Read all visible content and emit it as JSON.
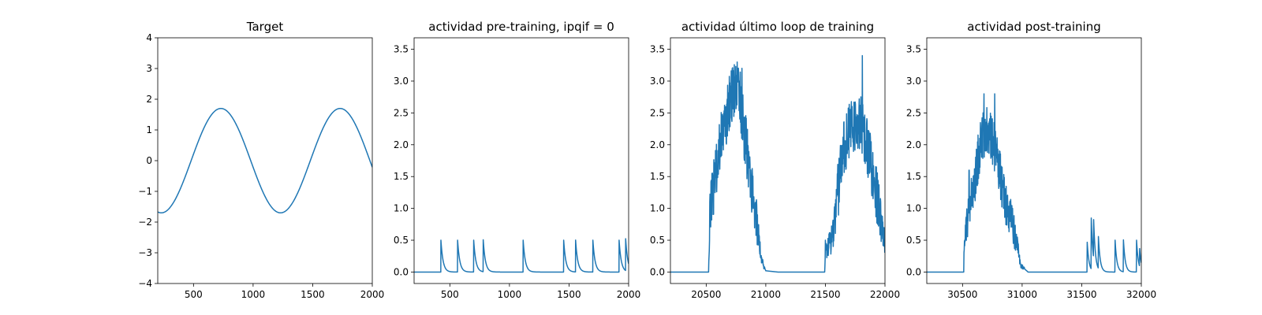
{
  "figure": {
    "line_color": "#1f77b4"
  },
  "chart_data": [
    {
      "type": "line",
      "title": "Target",
      "xlabel": "",
      "ylabel": "",
      "xlim": [
        200,
        2000
      ],
      "ylim": [
        -4,
        4
      ],
      "xticks": [
        500,
        1000,
        1500,
        2000
      ],
      "yticks": [
        -4,
        -3,
        -2,
        -1,
        0,
        1,
        2,
        3,
        4
      ],
      "grid": false,
      "series": [
        {
          "name": "",
          "kind": "sine",
          "amplitude": 1.7,
          "period": 1000,
          "trough_x": 230,
          "x_start": 200,
          "x_end": 2000
        }
      ]
    },
    {
      "type": "line",
      "title": "actividad pre-training, ipqif = 0",
      "xlabel": "",
      "ylabel": "",
      "xlim": [
        200,
        2000
      ],
      "ylim": [
        -0.18,
        3.68
      ],
      "xticks": [
        500,
        1000,
        1500,
        2000
      ],
      "yticks": [
        0.0,
        0.5,
        1.0,
        1.5,
        2.0,
        2.5,
        3.0,
        3.5
      ],
      "grid": false,
      "series": [
        {
          "name": "",
          "kind": "spikes",
          "x_start": 200,
          "x_end": 2000,
          "spike_times": [
            425,
            565,
            700,
            780,
            1115,
            1455,
            1555,
            1700,
            1920,
            1975
          ],
          "peak": 0.5,
          "tau": 18
        }
      ]
    },
    {
      "type": "line",
      "title": "actividad último loop de training",
      "xlabel": "",
      "ylabel": "",
      "xlim": [
        20200,
        22000
      ],
      "ylim": [
        -0.18,
        3.68
      ],
      "xticks": [
        20500,
        21000,
        21500,
        22000
      ],
      "yticks": [
        0.0,
        0.5,
        1.0,
        1.5,
        2.0,
        2.5,
        3.0,
        3.5
      ],
      "grid": false,
      "series": [
        {
          "name": "",
          "kind": "noisy_bursts",
          "x_start": 20200,
          "x_end": 22000,
          "envelope": [
            [
              20200,
              0
            ],
            [
              20520,
              0
            ],
            [
              20530,
              0.9
            ],
            [
              20560,
              1.3
            ],
            [
              20600,
              1.8
            ],
            [
              20650,
              2.3
            ],
            [
              20700,
              2.7
            ],
            [
              20740,
              2.9
            ],
            [
              20780,
              2.8
            ],
            [
              20820,
              2.2
            ],
            [
              20870,
              1.5
            ],
            [
              20920,
              0.9
            ],
            [
              20960,
              0.2
            ],
            [
              21000,
              0.02
            ],
            [
              21100,
              0
            ],
            [
              21495,
              0
            ],
            [
              21500,
              0.3
            ],
            [
              21550,
              0.5
            ],
            [
              21600,
              1.2
            ],
            [
              21650,
              1.9
            ],
            [
              21700,
              2.2
            ],
            [
              21760,
              2.4
            ],
            [
              21800,
              2.3
            ],
            [
              21850,
              2.0
            ],
            [
              21900,
              1.5
            ],
            [
              21950,
              1.0
            ],
            [
              22000,
              0.4
            ]
          ],
          "noise_amplitude": 0.45,
          "spikes": [
            [
              21500,
              0.5
            ],
            [
              21530,
              0.3
            ],
            [
              21560,
              0.5
            ],
            [
              21600,
              0.9
            ]
          ],
          "peak_marks": [
            [
              20760,
              3.3
            ],
            [
              20800,
              3.2
            ],
            [
              21810,
              3.4
            ],
            [
              20640,
              2.45
            ]
          ]
        }
      ]
    },
    {
      "type": "line",
      "title": "actividad post-training",
      "xlabel": "",
      "ylabel": "",
      "xlim": [
        30200,
        32000
      ],
      "ylim": [
        -0.18,
        3.68
      ],
      "xticks": [
        30500,
        31000,
        31500,
        32000
      ],
      "yticks": [
        0.0,
        0.5,
        1.0,
        1.5,
        2.0,
        2.5,
        3.0,
        3.5
      ],
      "grid": false,
      "series": [
        {
          "name": "",
          "kind": "noisy_bursts",
          "x_start": 30200,
          "x_end": 32000,
          "envelope": [
            [
              30200,
              0
            ],
            [
              30510,
              0
            ],
            [
              30515,
              0.6
            ],
            [
              30550,
              1.0
            ],
            [
              30600,
              1.4
            ],
            [
              30650,
              2.0
            ],
            [
              30700,
              2.3
            ],
            [
              30750,
              2.1
            ],
            [
              30800,
              1.7
            ],
            [
              30850,
              1.2
            ],
            [
              30900,
              0.9
            ],
            [
              30950,
              0.5
            ],
            [
              30990,
              0.1
            ],
            [
              31050,
              0
            ],
            [
              32000,
              0
            ]
          ],
          "noise_amplitude": 0.4,
          "spikes": [
            [
              31545,
              0.5
            ],
            [
              31580,
              0.8
            ],
            [
              31600,
              0.6
            ],
            [
              31640,
              0.5
            ],
            [
              31780,
              0.5
            ],
            [
              31850,
              0.5
            ],
            [
              31960,
              0.5
            ],
            [
              31985,
              0.3
            ]
          ],
          "peak_marks": [
            [
              30680,
              2.8
            ],
            [
              30770,
              2.8
            ],
            [
              30555,
              1.6
            ],
            [
              30920,
              1.0
            ]
          ]
        }
      ]
    }
  ]
}
